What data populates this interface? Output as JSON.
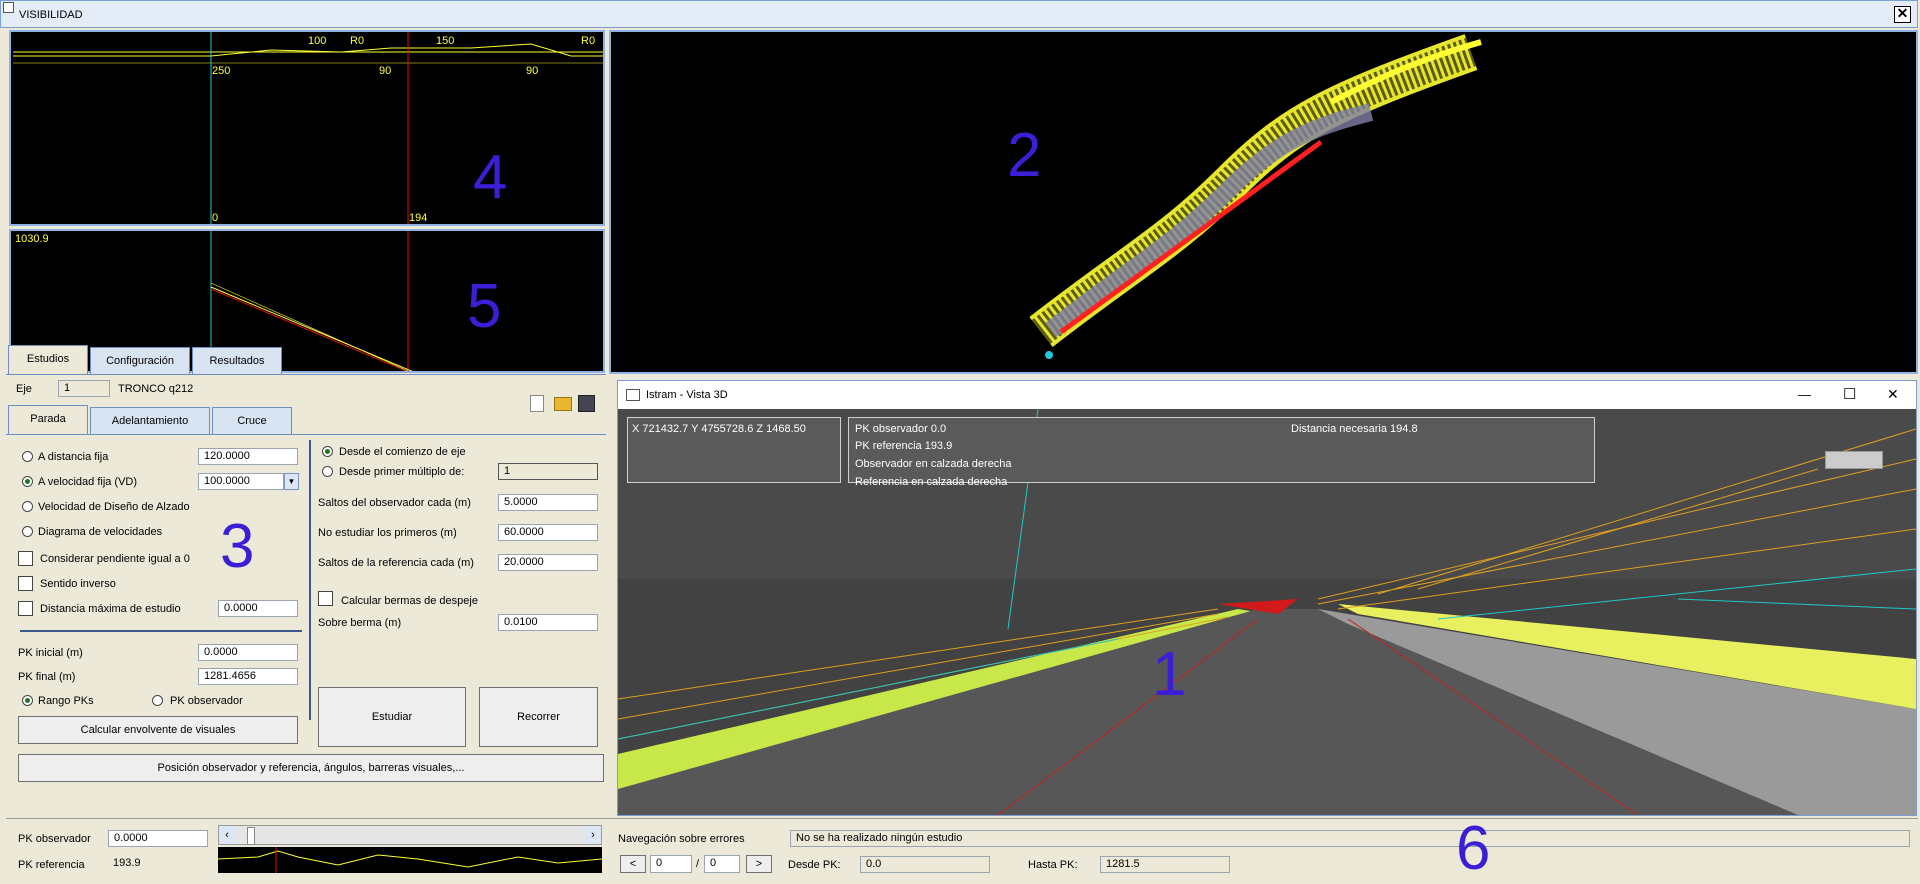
{
  "window": {
    "title": "VISIBILIDAD",
    "close_glyph": "✕"
  },
  "labels": {
    "n1": "1",
    "n2": "2",
    "n3": "3",
    "n4": "4",
    "n5": "5",
    "n6": "6"
  },
  "plan_top": {
    "marks": [
      "100",
      "R0",
      "150",
      "R0"
    ],
    "radii": [
      "250",
      "90",
      "90"
    ],
    "bottom": [
      "0",
      "194"
    ]
  },
  "profile": {
    "value": "1030.9"
  },
  "tabs_main": [
    "Estudios",
    "Configuración",
    "Resultados"
  ],
  "eje": {
    "label": "Eje",
    "value": "1",
    "name": "TRONCO q212"
  },
  "tabs_sub": [
    "Parada",
    "Adelantamiento",
    "Cruce"
  ],
  "left_options": {
    "distancia_fija": {
      "label": "A distancia fija",
      "value": "120.0000"
    },
    "velocidad_fija": {
      "label": "A velocidad fija (VD)",
      "value": "100.0000"
    },
    "velocidad_diseno": "Velocidad de Diseño de Alzado",
    "diagrama": "Diagrama de velocidades",
    "pendiente": "Considerar pendiente igual a 0",
    "sentido": "Sentido inverso",
    "dist_max": {
      "label": "Distancia máxima de estudio",
      "value": "0.0000"
    },
    "pk_inicial": {
      "label": "PK inicial (m)",
      "value": "0.0000"
    },
    "pk_final": {
      "label": "PK final (m)",
      "value": "1281.4656"
    },
    "rango": "Rango PKs",
    "pk_obs": "PK observador",
    "calc_env": "Calcular envolvente de visuales",
    "posicion": "Posición observador y referencia, ángulos, barreras visuales,..."
  },
  "right_options": {
    "desde_comienzo": "Desde el comienzo de eje",
    "desde_multiplo": {
      "label": "Desde primer múltiplo de:",
      "value": "1"
    },
    "saltos_obs": {
      "label": "Saltos del observador cada (m)",
      "value": "5.0000"
    },
    "no_estudiar": {
      "label": "No estudiar los primeros (m)",
      "value": "60.0000"
    },
    "saltos_ref": {
      "label": "Saltos de la referencia cada (m)",
      "value": "20.0000"
    },
    "bermas": "Calcular bermas de despeje",
    "sobre_berma": {
      "label": "Sobre berma (m)",
      "value": "0.0100"
    },
    "estudiar": "Estudiar",
    "recorrer": "Recorrer"
  },
  "view3d": {
    "title": "Istram - Vista 3D",
    "coords": "X  721432.7   Y  4755728.6   Z  1468.50",
    "pk_obs": "PK observador  0.0",
    "pk_ref": "PK referencia  193.9",
    "obs_calzada": "Observador en calzada derecha",
    "ref_calzada": "Referencia en calzada derecha",
    "dist_nec": "Distancia necesaria  194.8",
    "minimize": "—",
    "maximize": "☐",
    "close": "✕"
  },
  "bottom": {
    "pk_obs_label": "PK observador",
    "pk_obs_value": "0.0000",
    "pk_ref_label": "PK referencia",
    "pk_ref_value": "193.9",
    "nav_label": "Navegación sobre errores",
    "status": "No se ha realizado ningún estudio",
    "page_cur": "0",
    "page_sep": "/",
    "page_tot": "0",
    "desde_label": "Desde PK:",
    "desde_value": "0.0",
    "hasta_label": "Hasta PK:",
    "hasta_value": "1281.5",
    "prev": "<",
    "next": ">"
  }
}
